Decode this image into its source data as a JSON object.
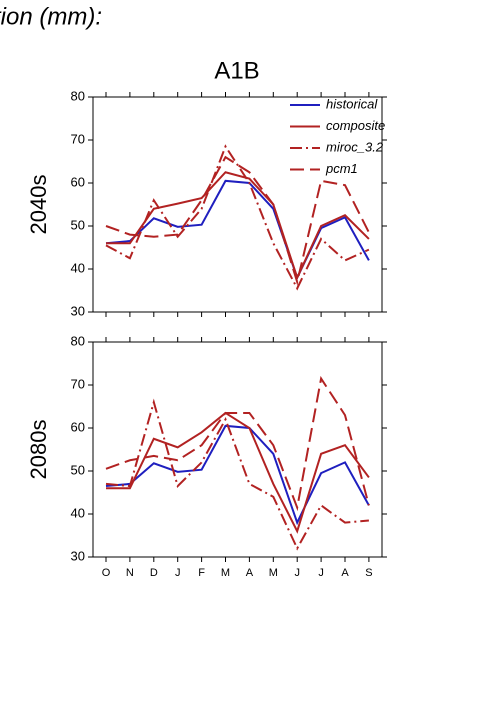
{
  "page_title": "tion (mm):",
  "chart_data": [
    {
      "type": "line",
      "title": "A1B",
      "ylabel": "2040s",
      "ylim": [
        30,
        80
      ],
      "yticks": [
        30,
        40,
        50,
        60,
        70,
        80
      ],
      "legend": "upper right",
      "series": [
        {
          "name": "historical",
          "color": "#1f1fbf",
          "dash": "solid",
          "values": [
            46,
            46.5,
            51.8,
            49.8,
            50.3,
            60.5,
            60,
            54,
            38,
            49.5,
            52,
            42
          ]
        },
        {
          "name": "composite",
          "color": "#b22222",
          "dash": "solid",
          "values": [
            46,
            46,
            54,
            55.2,
            56.5,
            62.5,
            61,
            55,
            38,
            50,
            52.5,
            47
          ]
        },
        {
          "name": "miroc_3.2",
          "color": "#b22222",
          "dash": "dashdot",
          "values": [
            45.5,
            42.5,
            56,
            47.5,
            54,
            68.5,
            60,
            46,
            35.5,
            47,
            42,
            44.5
          ]
        },
        {
          "name": "pcm1",
          "color": "#b22222",
          "dash": "longdash",
          "values": [
            50,
            48,
            47.5,
            48,
            56,
            66,
            62.5,
            55,
            37,
            60.5,
            59.5,
            48.5
          ]
        }
      ]
    },
    {
      "type": "line",
      "ylabel": "2080s",
      "ylim": [
        30,
        80
      ],
      "yticks": [
        30,
        40,
        50,
        60,
        70,
        80
      ],
      "categories": [
        "O",
        "N",
        "D",
        "J",
        "F",
        "M",
        "A",
        "M",
        "J",
        "J",
        "A",
        "S"
      ],
      "series": [
        {
          "color": "#1f1fbf",
          "dash": "solid",
          "values": [
            46.5,
            47,
            51.8,
            49.8,
            50.3,
            60.5,
            60,
            54,
            38,
            49.5,
            52,
            42
          ]
        },
        {
          "color": "#b22222",
          "dash": "solid",
          "values": [
            46,
            46,
            57.5,
            55.5,
            59,
            63.5,
            60,
            47,
            36,
            54,
            56,
            48.5
          ]
        },
        {
          "color": "#b22222",
          "dash": "dashdot",
          "values": [
            47,
            46.5,
            66,
            46.5,
            52,
            62,
            47,
            44,
            32,
            42,
            38,
            38.5
          ]
        },
        {
          "color": "#b22222",
          "dash": "longdash",
          "values": [
            50.5,
            52.5,
            53.5,
            52.5,
            56,
            63.5,
            63.5,
            56,
            41.5,
            71.5,
            63,
            42
          ]
        }
      ]
    }
  ]
}
